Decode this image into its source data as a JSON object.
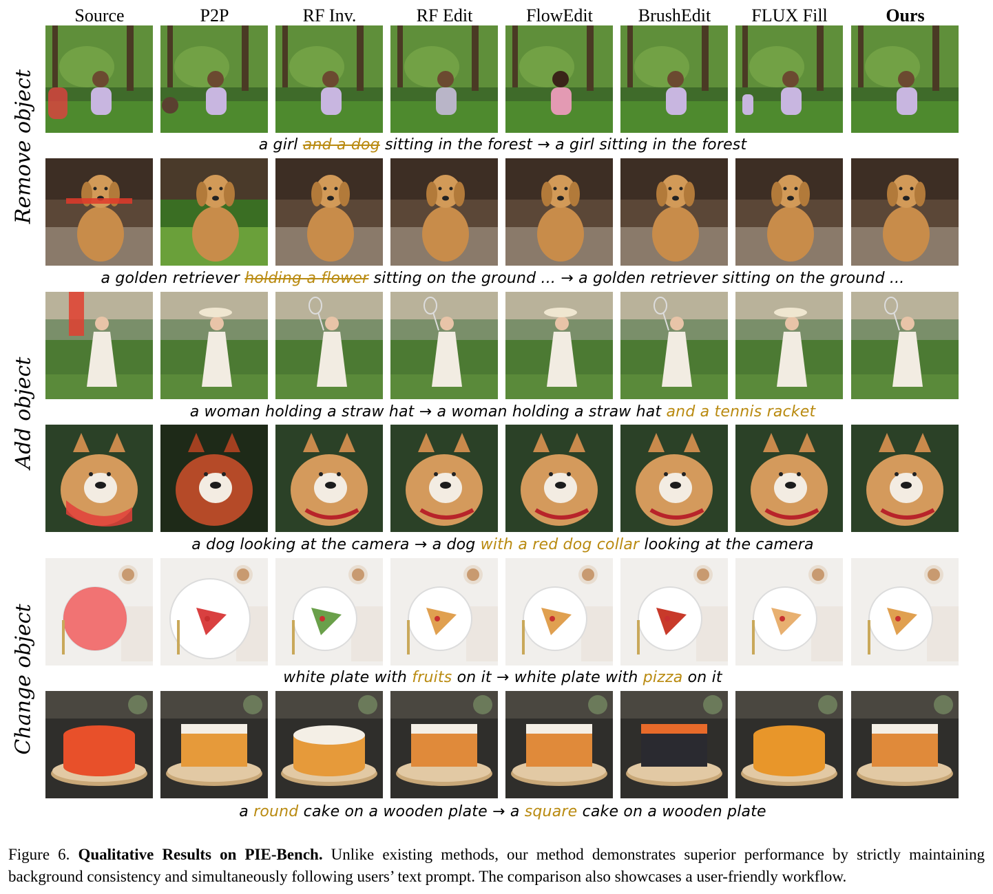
{
  "columns": [
    "Source",
    "P2P",
    "RF Inv.",
    "RF Edit",
    "FlowEdit",
    "BrushEdit",
    "FLUX Fill",
    "Ours"
  ],
  "row_groups": [
    "Remove object",
    "Add object",
    "Change object"
  ],
  "captions": [
    {
      "a": "a girl ",
      "hl": "and a dog",
      "b": " sitting in the forest → a girl sitting in the forest"
    },
    {
      "a": "a golden retriever ",
      "hl": "holding a flower",
      "b": " sitting on the ground ... → a golden retriever sitting on the ground ..."
    },
    {
      "a": "a woman holding a straw hat → a woman holding a straw hat ",
      "hl": "and a tennis racket",
      "b": ""
    },
    {
      "a": "a dog looking at the camera → a dog ",
      "hl": "with a red dog collar",
      "b": " looking at the camera"
    },
    {
      "a": "white plate with ",
      "hl": "fruits",
      "b": " on it → white plate with ",
      "hl2": "pizza",
      "c": " on it"
    },
    {
      "a": "a ",
      "hl": "round",
      "b": " cake on a wooden plate → a ",
      "hl2": "square",
      "c": " cake on a wooden plate"
    }
  ],
  "figure_caption": {
    "label": "Figure 6. ",
    "title": "Qualitative Results on PIE-Bench.",
    "body": " Unlike existing methods, our method demonstrates superior performance by strictly maintaining background consistency and simultaneously following users’ text prompt. The comparison also showcases a user-friendly workflow."
  }
}
